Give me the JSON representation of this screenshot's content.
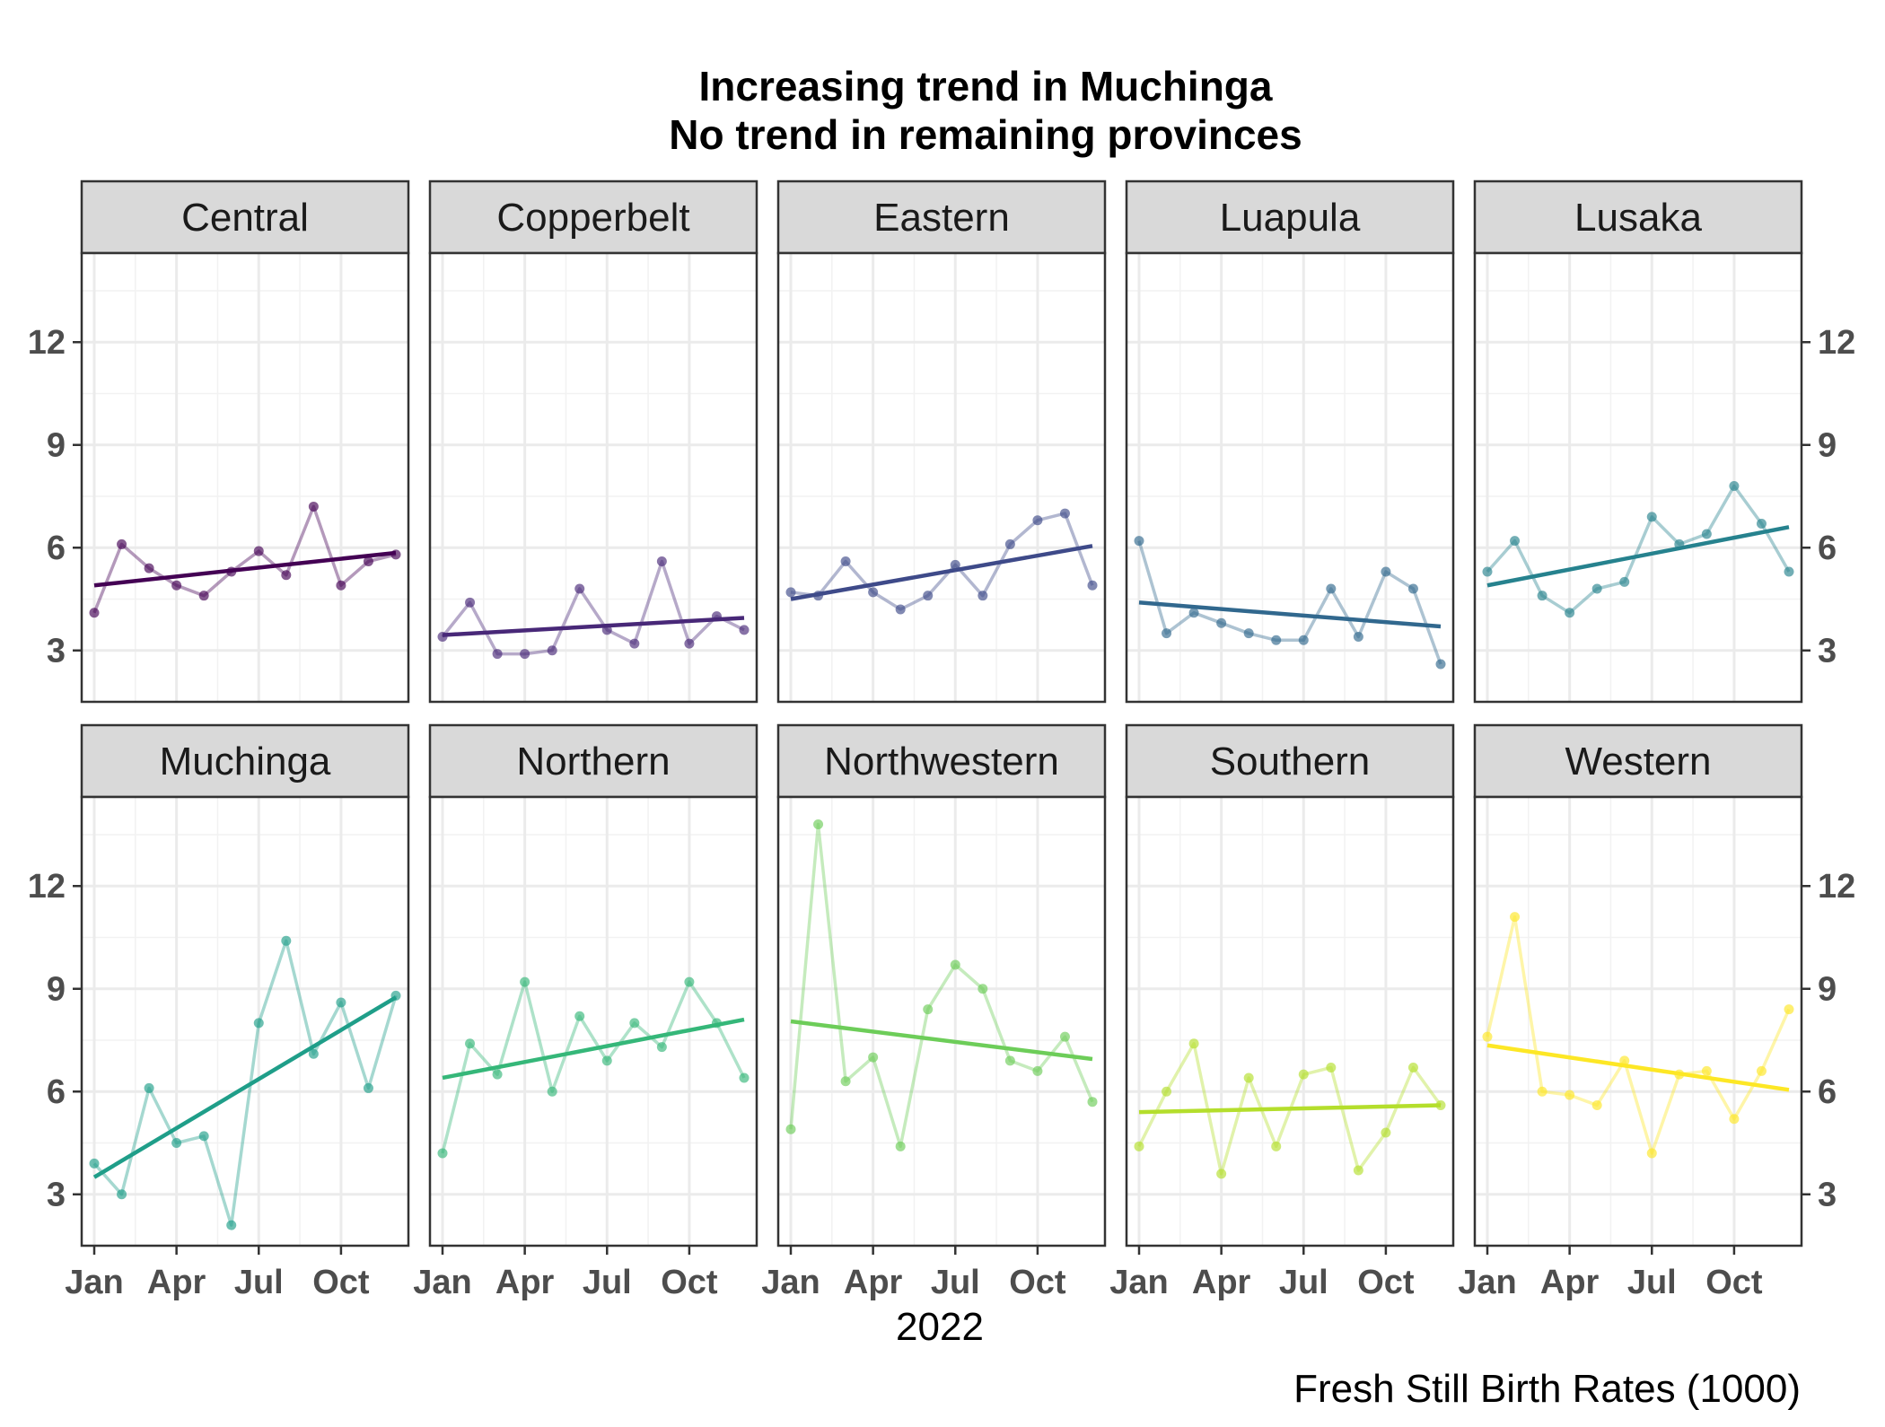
{
  "chart_data": {
    "type": "line",
    "title_line1": "Increasing trend in Muchinga",
    "title_line2": "No trend in remaining provinces",
    "xlabel": "2022",
    "caption": "Fresh Still Birth Rates (1000)",
    "x": [
      "2022-01",
      "2022-02",
      "2022-03",
      "2022-04",
      "2022-05",
      "2022-06",
      "2022-07",
      "2022-08",
      "2022-09",
      "2022-10",
      "2022-11",
      "2022-12"
    ],
    "x_ticks": [
      {
        "label": "Jan",
        "month": 1
      },
      {
        "label": "Apr",
        "month": 4
      },
      {
        "label": "Jul",
        "month": 7
      },
      {
        "label": "Oct",
        "month": 10
      }
    ],
    "y_ticks": [
      3,
      6,
      9,
      12
    ],
    "ylim": [
      1.5,
      14.6
    ],
    "grid": true,
    "facets": [
      {
        "name": "Central",
        "color": "#440154",
        "values": [
          4.1,
          6.1,
          5.4,
          4.9,
          4.6,
          5.3,
          5.9,
          5.2,
          7.2,
          4.9,
          5.6,
          5.8
        ],
        "trend": [
          4.9,
          5.85
        ]
      },
      {
        "name": "Copperbelt",
        "color": "#482878",
        "values": [
          3.4,
          4.4,
          2.9,
          2.9,
          3.0,
          4.8,
          3.6,
          3.2,
          5.6,
          3.2,
          4.0,
          3.6
        ],
        "trend": [
          3.45,
          3.95
        ]
      },
      {
        "name": "Eastern",
        "color": "#3E4A89",
        "values": [
          4.7,
          4.6,
          5.6,
          4.7,
          4.2,
          4.6,
          5.5,
          4.6,
          6.1,
          6.8,
          7.0,
          4.9
        ],
        "trend": [
          4.5,
          6.05
        ]
      },
      {
        "name": "Luapula",
        "color": "#31688E",
        "values": [
          6.2,
          3.5,
          4.1,
          3.8,
          3.5,
          3.3,
          3.3,
          4.8,
          3.4,
          5.3,
          4.8,
          2.6
        ],
        "trend": [
          4.4,
          3.7
        ]
      },
      {
        "name": "Lusaka",
        "color": "#26828E",
        "values": [
          5.3,
          6.2,
          4.6,
          4.1,
          4.8,
          5.0,
          6.9,
          6.1,
          6.4,
          7.8,
          6.7,
          5.3
        ],
        "trend": [
          4.9,
          6.6
        ]
      },
      {
        "name": "Muchinga",
        "color": "#1F9E89",
        "values": [
          3.9,
          3.0,
          6.1,
          4.5,
          4.7,
          2.1,
          8.0,
          10.4,
          7.1,
          8.6,
          6.1,
          8.8
        ],
        "trend": [
          3.5,
          8.75
        ]
      },
      {
        "name": "Northern",
        "color": "#35B779",
        "values": [
          4.2,
          7.4,
          6.5,
          9.2,
          6.0,
          8.2,
          6.9,
          8.0,
          7.3,
          9.2,
          8.0,
          6.4
        ],
        "trend": [
          6.4,
          8.1
        ]
      },
      {
        "name": "Northwestern",
        "color": "#6DCD59",
        "values": [
          4.9,
          13.8,
          6.3,
          7.0,
          4.4,
          8.4,
          9.7,
          9.0,
          6.9,
          6.6,
          7.6,
          5.7
        ],
        "trend": [
          8.05,
          6.95
        ]
      },
      {
        "name": "Southern",
        "color": "#B4DE2C",
        "values": [
          4.4,
          6.0,
          7.4,
          3.6,
          6.4,
          4.4,
          6.5,
          6.7,
          3.7,
          4.8,
          6.7,
          5.6
        ],
        "trend": [
          5.4,
          5.6
        ]
      },
      {
        "name": "Western",
        "color": "#FDE725",
        "values": [
          7.6,
          11.1,
          6.0,
          5.9,
          5.6,
          6.9,
          4.2,
          6.5,
          6.6,
          5.2,
          6.6,
          8.4
        ],
        "trend": [
          7.35,
          6.05
        ]
      }
    ]
  }
}
